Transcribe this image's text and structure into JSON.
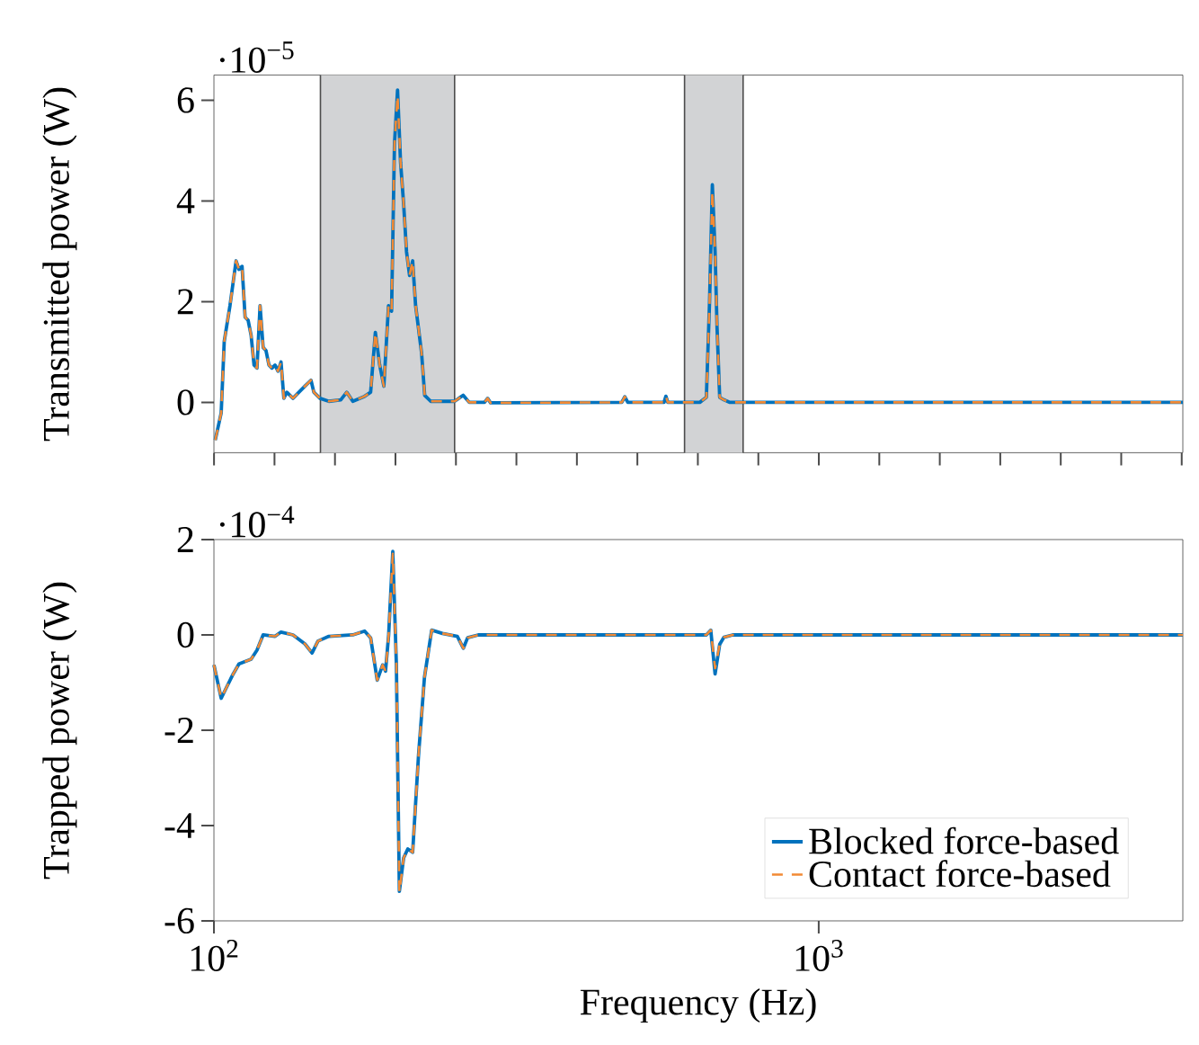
{
  "chart_data": [
    {
      "type": "line",
      "ylabel": "Transmitted power (W)",
      "annotations": [
        "·10$^{−5}$"
      ],
      "log": "x",
      "tick_labels": "y",
      "xlim": [
        100,
        4000
      ],
      "ylim": [
        -1,
        6.5
      ],
      "yticks": [
        0,
        2,
        4,
        6
      ],
      "bands": [
        {
          "axis": "x",
          "from": 150,
          "to": 250,
          "color": "#d2d3d5"
        },
        {
          "axis": "x",
          "from": 600,
          "to": 750,
          "color": "#d2d3d5"
        }
      ],
      "x": [
        100.5,
        102.8,
        104,
        106.3,
        108.8,
        110,
        111.3,
        112.6,
        113.9,
        115.2,
        116.5,
        117.8,
        119.2,
        120.6,
        121.9,
        123.3,
        124.7,
        126.2,
        127.6,
        129.1,
        130.5,
        132,
        135.1,
        138.2,
        141.4,
        144.7,
        146.3,
        149.7,
        154.9,
        162.1,
        165.8,
        169.7,
        177.5,
        181.6,
        184.9,
        188,
        191,
        194.4,
        196.7,
        198.9,
        201.2,
        203.5,
        205.9,
        208.2,
        210.6,
        213.1,
        215.5,
        218,
        220.5,
        223.1,
        228.3,
        238.9,
        250,
        258.3,
        264.3,
        280.2,
        283.5,
        286.7,
        472.5,
        477.9,
        483.4,
        555,
        558.9,
        563,
        636,
        652,
        660,
        667,
        674,
        679,
        686,
        697,
        713,
        4000
      ],
      "series": [
        {
          "color": "#0072bd",
          "line_style": "solid",
          "values": [
            -0.75,
            -0.21,
            1.21,
            1.92,
            2.81,
            2.64,
            2.7,
            1.69,
            1.63,
            1.33,
            0.74,
            0.68,
            1.92,
            1.09,
            1.03,
            0.74,
            0.68,
            0.74,
            0.62,
            0.8,
            0.08,
            0.2,
            0.08,
            0.2,
            0.32,
            0.44,
            0.2,
            0.08,
            0.02,
            0.05,
            0.2,
            0.02,
            0.12,
            0.2,
            1.39,
            0.74,
            0.32,
            1.92,
            1.81,
            5.13,
            6.2,
            4.77,
            3.94,
            2.99,
            2.52,
            2.81,
            1.92,
            1.45,
            0.97,
            0.14,
            0.02,
            0.02,
            0.02,
            0.14,
            0,
            0,
            0.08,
            -0.01,
            0,
            0.11,
            0,
            0,
            0.12,
            0,
            0,
            0.1,
            2,
            4.32,
            3.0,
            1.5,
            0.1,
            0.05,
            0,
            0
          ]
        },
        {
          "color": "#f28a35",
          "line_style": "dashed",
          "values": [
            -0.75,
            -0.21,
            1.21,
            1.92,
            2.81,
            2.64,
            2.7,
            1.69,
            1.63,
            1.33,
            0.74,
            0.68,
            1.92,
            1.09,
            1.03,
            0.74,
            0.68,
            0.74,
            0.62,
            0.8,
            0.08,
            0.2,
            0.08,
            0.2,
            0.32,
            0.44,
            0.2,
            0.08,
            0.02,
            0.05,
            0.2,
            0.02,
            0.12,
            0.2,
            1.39,
            0.74,
            0.32,
            1.92,
            1.81,
            5.13,
            6.1,
            4.77,
            3.94,
            2.99,
            2.52,
            2.81,
            1.92,
            1.45,
            0.97,
            0.14,
            0.02,
            0.02,
            0.02,
            0.14,
            0,
            0,
            0.08,
            -0.01,
            0,
            0.11,
            0,
            0,
            0.12,
            0,
            0,
            0.1,
            2,
            4.2,
            3.0,
            1.5,
            0.1,
            0.05,
            0,
            0
          ]
        }
      ]
    },
    {
      "type": "line",
      "xlabel": "Frequency (Hz)",
      "ylabel": "Trapped power (W)",
      "annotations": [
        "·10$^{−4}$"
      ],
      "log": "x",
      "legend": "bottom right",
      "xlim": [
        100,
        4000
      ],
      "ylim": [
        -6,
        2
      ],
      "xticks": [
        {
          "value": 100,
          "label": "10$^{2}$"
        },
        {
          "value": 1000,
          "label": "10$^{3}$"
        }
      ],
      "yticks": [
        -6,
        -4,
        -2,
        0,
        2
      ],
      "x": [
        100,
        102.8,
        105.1,
        107.6,
        110,
        115.2,
        117.8,
        120.6,
        126.2,
        129.1,
        135.1,
        141.4,
        145.3,
        148.6,
        154.9,
        169.7,
        177.5,
        181.6,
        186.2,
        190.1,
        192.2,
        194.5,
        197.6,
        200.3,
        202.6,
        205.9,
        209.2,
        213.1,
        217.9,
        222.9,
        229.1,
        238.7,
        252.6,
        258.5,
        262.7,
        273.6,
        652,
        663,
        674,
        686,
        697,
        721,
        4000
      ],
      "series": [
        {
          "name": "Blocked force-based",
          "color": "#0072bd",
          "line_style": "solid",
          "values": [
            -0.63,
            -1.33,
            -1.08,
            -0.82,
            -0.61,
            -0.51,
            -0.32,
            0,
            -0.03,
            0.06,
            0,
            -0.19,
            -0.38,
            -0.13,
            -0.03,
            0,
            0.08,
            -0.06,
            -0.95,
            -0.63,
            -0.76,
            0,
            1.75,
            -0.63,
            -5.38,
            -4.68,
            -4.49,
            -4.56,
            -2.53,
            -0.89,
            0.1,
            0.03,
            -0.03,
            -0.28,
            -0.06,
            0,
            0,
            0.1,
            -0.82,
            -0.2,
            -0.05,
            0,
            0
          ]
        },
        {
          "name": "Contact force-based",
          "color": "#f28a35",
          "line_style": "dashed",
          "values": [
            -0.63,
            -1.33,
            -1.08,
            -0.82,
            -0.61,
            -0.51,
            -0.32,
            0,
            -0.03,
            0.06,
            0,
            -0.19,
            -0.38,
            -0.13,
            -0.03,
            0,
            0.08,
            -0.06,
            -0.95,
            -0.63,
            -0.76,
            0,
            1.7,
            -0.63,
            -5.4,
            -4.68,
            -4.49,
            -4.56,
            -2.53,
            -0.89,
            0.1,
            0.03,
            -0.03,
            -0.28,
            -0.06,
            0,
            0,
            0.1,
            -0.7,
            -0.2,
            -0.05,
            0,
            0
          ]
        }
      ]
    }
  ]
}
